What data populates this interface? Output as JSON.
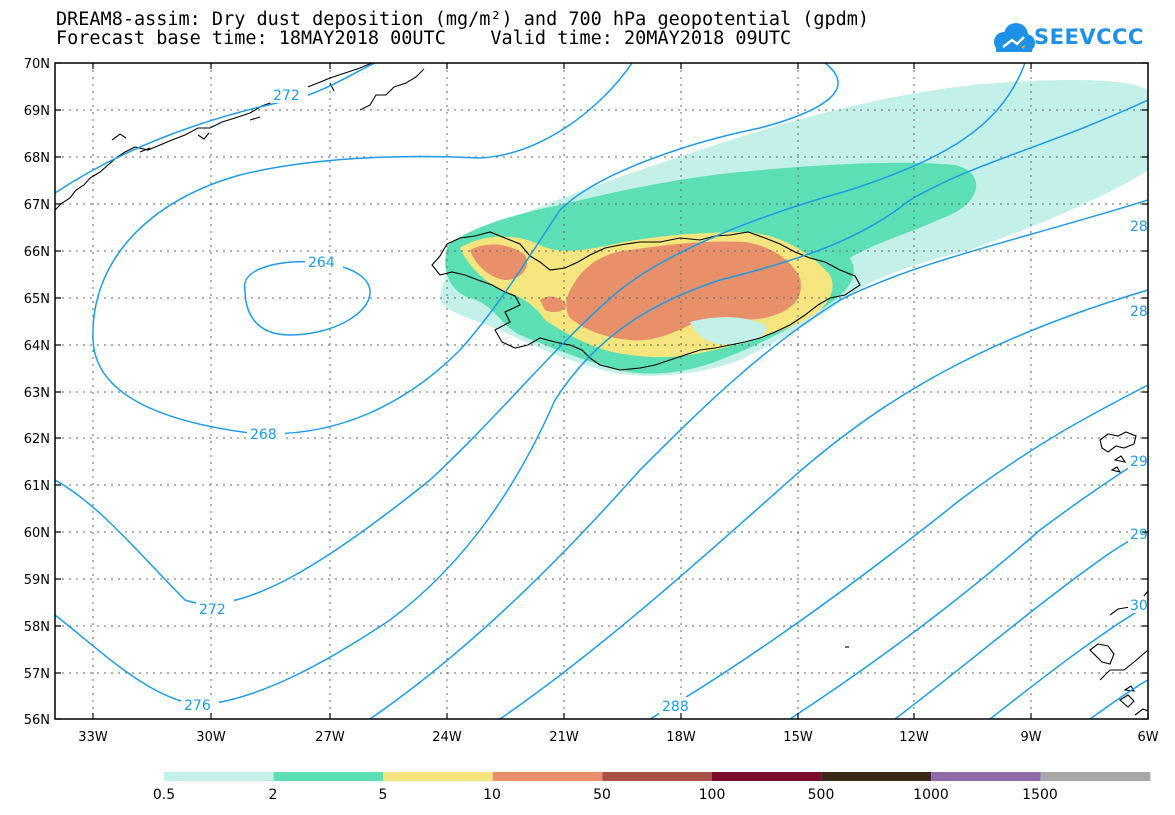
{
  "title_line1": "DREAM8-assim: Dry dust deposition (mg/m²) and 700 hPa geopotential (gpdm)",
  "title_line2": "Forecast base time: 18MAY2018 00UTC    Valid time: 20MAY2018 09UTC",
  "logo_text": "SEEVCCC",
  "latitude_labels": [
    "70N",
    "69N",
    "68N",
    "67N",
    "66N",
    "65N",
    "64N",
    "63N",
    "62N",
    "61N",
    "60N",
    "59N",
    "58N",
    "57N",
    "56N"
  ],
  "longitude_labels": [
    "33W",
    "30W",
    "27W",
    "24W",
    "21W",
    "18W",
    "15W",
    "12W",
    "9W",
    "6W"
  ],
  "contour_labels": [
    "272",
    "264",
    "268",
    "272",
    "276",
    "288",
    "28",
    "28",
    "29",
    "29",
    "30"
  ],
  "colorbar": {
    "labels": [
      "0.5",
      "2",
      "5",
      "10",
      "50",
      "100",
      "500",
      "1000",
      "1500"
    ],
    "colors": [
      "#c4f0ea",
      "#5ddfb5",
      "#f5e57e",
      "#e8906a",
      "#a65248",
      "#7a0e2a",
      "#3b2818",
      "#8f6aa8",
      "#a8a8a8"
    ]
  },
  "contour_color": "#1e9be6"
}
